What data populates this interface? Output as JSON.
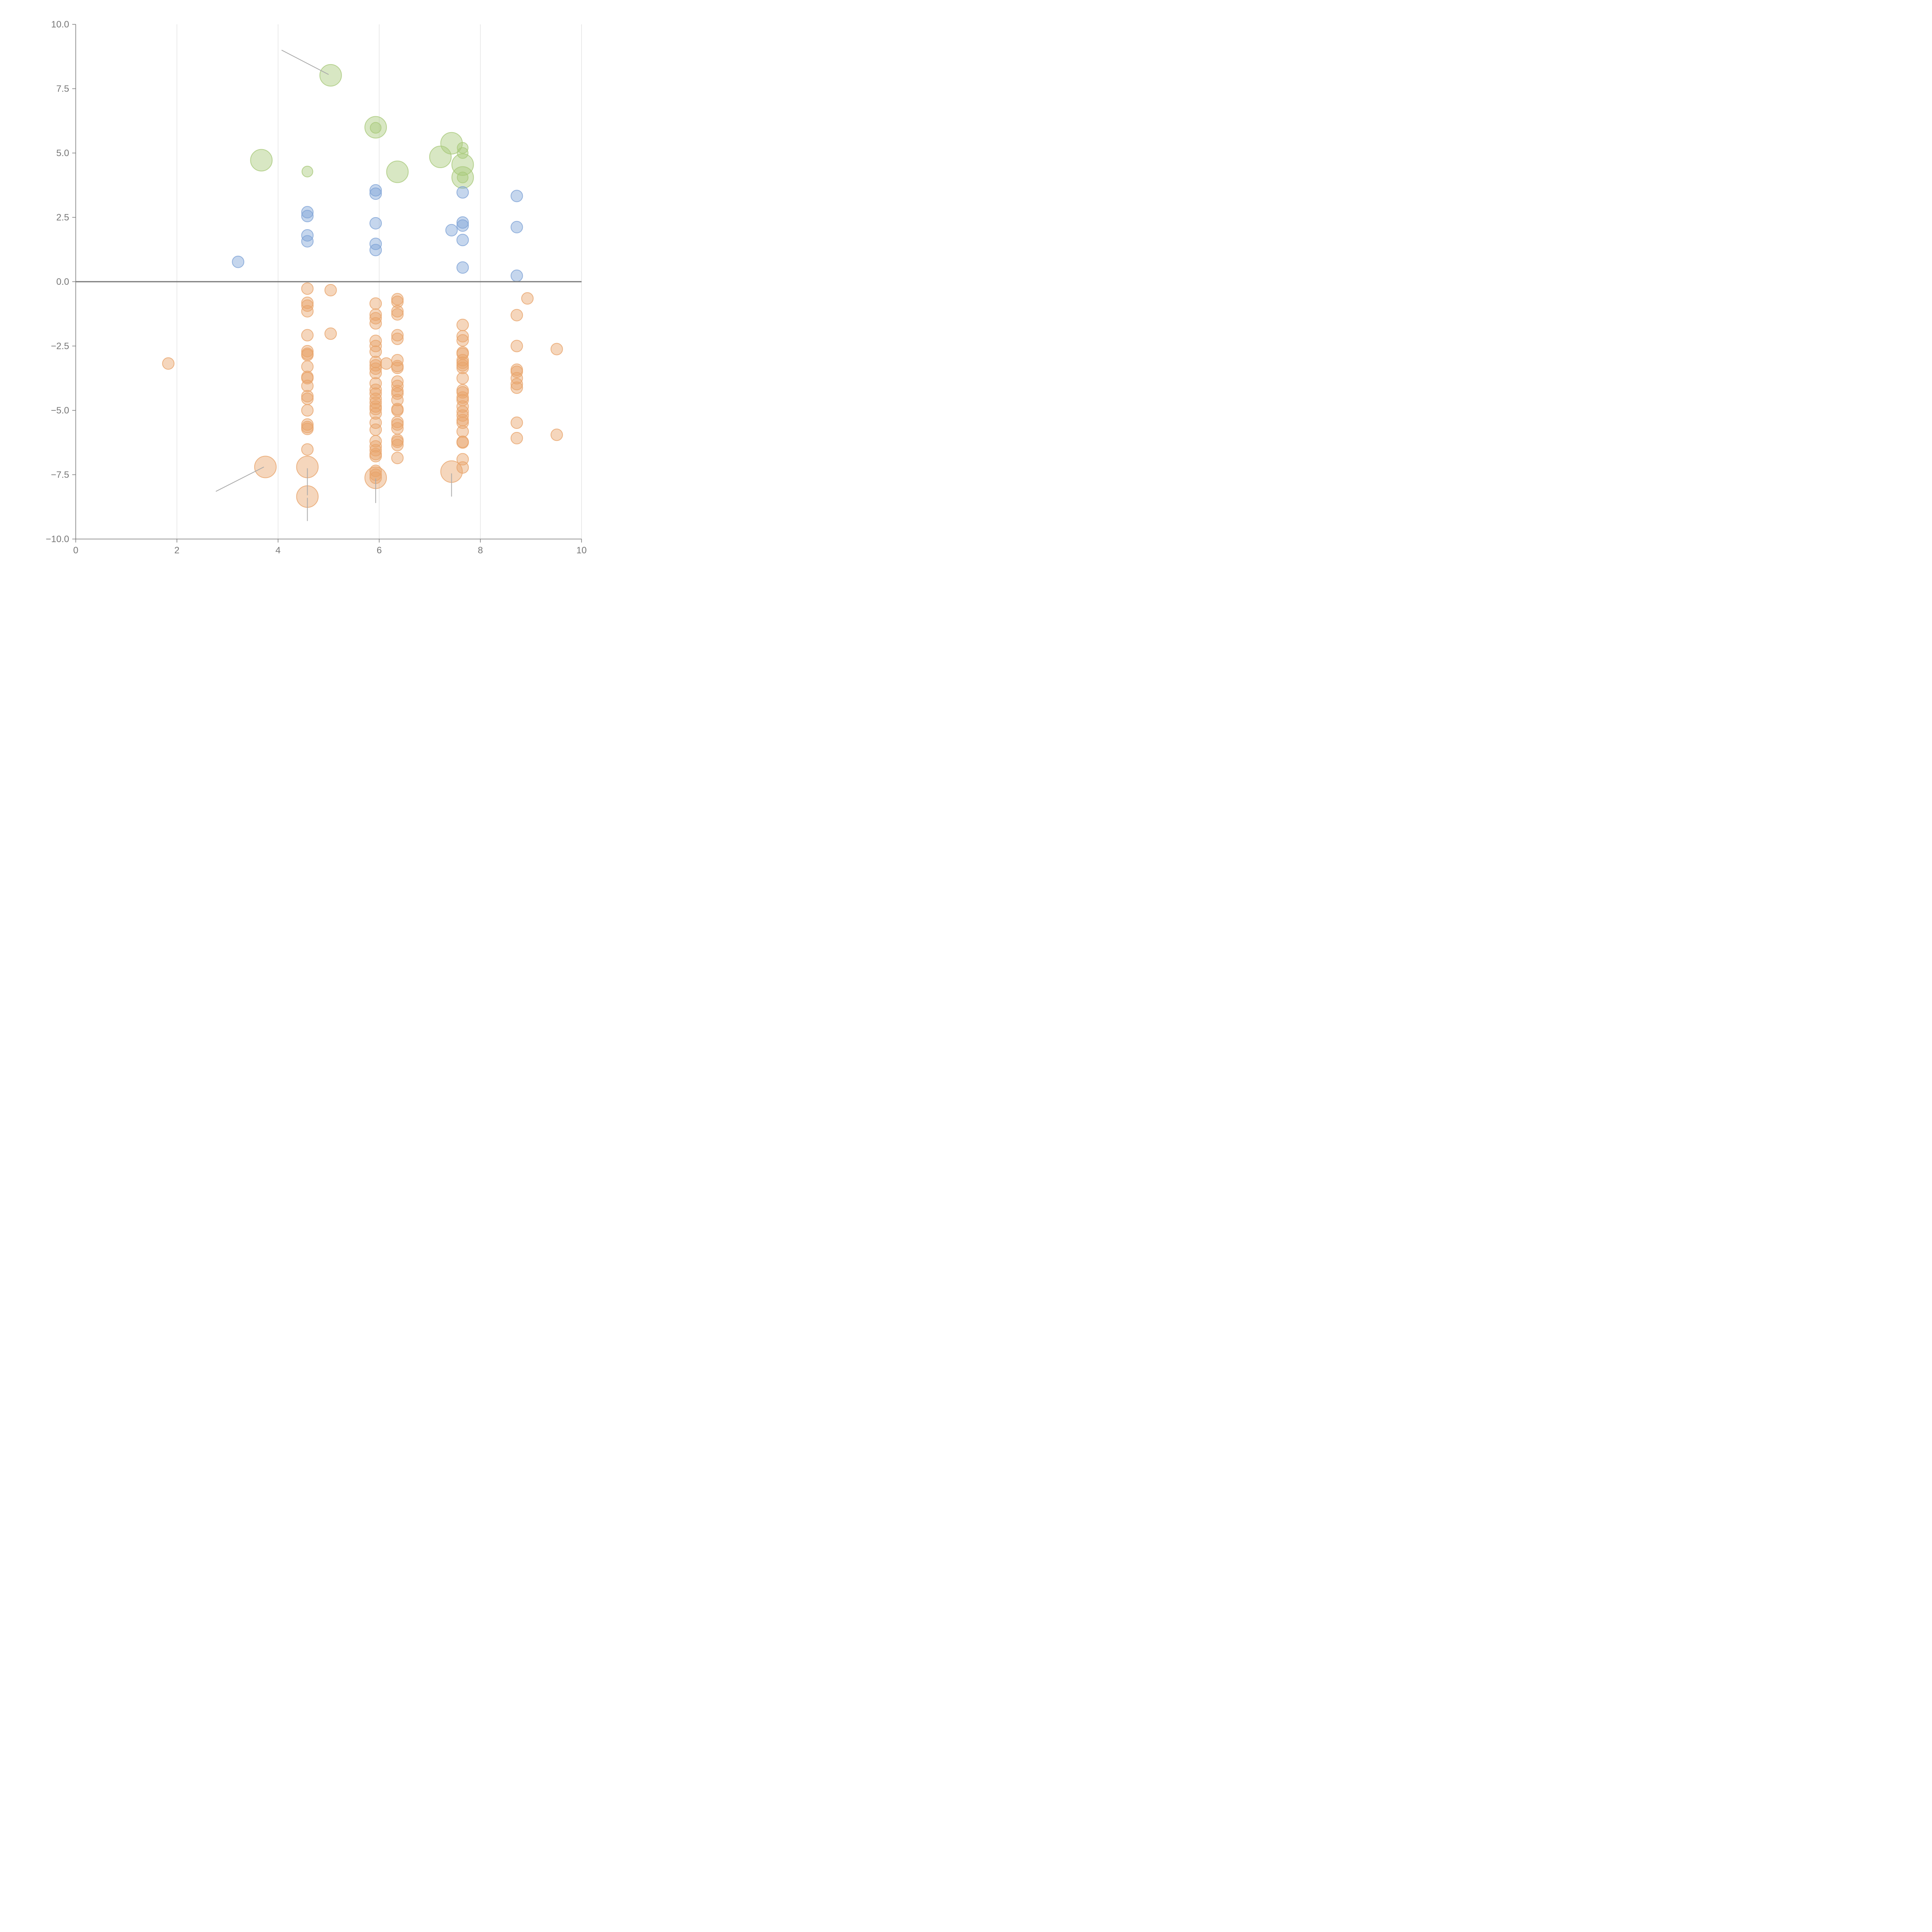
{
  "chart_data": {
    "type": "scatter",
    "title": "",
    "xlabel": "",
    "ylabel": "",
    "xlim": [
      0,
      10
    ],
    "ylim": [
      -10,
      10
    ],
    "x_ticks": [
      "0",
      "2",
      "4",
      "6",
      "8",
      "10"
    ],
    "y_ticks": [
      "10.0",
      "7.5",
      "5.0",
      "2.5",
      "0.0",
      "−2.5",
      "−5.0",
      "−7.5",
      "−10.0"
    ],
    "grid": "vertical",
    "zero_line": true,
    "legend": "none",
    "series": [
      {
        "color": "#a9c97b",
        "radius": 14,
        "points": [
          [
            4.58,
            4.28
          ],
          [
            5.93,
            5.98
          ],
          [
            7.65,
            5.2
          ],
          [
            7.65,
            5.0
          ],
          [
            7.65,
            4.05
          ]
        ]
      },
      {
        "color": "#a9c97b",
        "radius": 28,
        "points": [
          [
            5.04,
            8.02
          ],
          [
            5.93,
            6.0
          ],
          [
            3.67,
            4.72
          ],
          [
            7.43,
            5.38
          ],
          [
            7.21,
            4.85
          ],
          [
            6.36,
            4.27
          ],
          [
            7.65,
            4.55
          ],
          [
            7.65,
            4.05
          ]
        ]
      },
      {
        "color": "#7ea3d6",
        "radius": 15,
        "points": [
          [
            3.21,
            0.77
          ],
          [
            4.58,
            2.7
          ],
          [
            4.58,
            2.55
          ],
          [
            4.58,
            1.8
          ],
          [
            4.58,
            1.57
          ],
          [
            5.93,
            3.55
          ],
          [
            5.93,
            3.42
          ],
          [
            5.93,
            2.27
          ],
          [
            5.93,
            1.47
          ],
          [
            5.93,
            1.23
          ],
          [
            7.43,
            2.0
          ],
          [
            7.65,
            3.47
          ],
          [
            7.65,
            2.3
          ],
          [
            7.65,
            2.18
          ],
          [
            7.65,
            1.62
          ],
          [
            7.65,
            0.55
          ],
          [
            8.72,
            3.33
          ],
          [
            8.72,
            2.12
          ],
          [
            8.72,
            0.23
          ]
        ]
      },
      {
        "color": "#e9a46a",
        "radius": 15,
        "points": [
          [
            1.83,
            -3.18
          ],
          [
            5.04,
            -0.33
          ],
          [
            5.04,
            -2.02
          ],
          [
            6.14,
            -3.18
          ],
          [
            8.93,
            -0.65
          ],
          [
            9.51,
            -2.62
          ],
          [
            9.51,
            -5.95
          ],
          [
            4.58,
            -0.27
          ],
          [
            4.58,
            -0.82
          ],
          [
            4.58,
            -0.93
          ],
          [
            4.58,
            -1.15
          ],
          [
            4.58,
            -2.08
          ],
          [
            4.58,
            -2.7
          ],
          [
            4.58,
            -2.8
          ],
          [
            4.58,
            -2.85
          ],
          [
            4.58,
            -3.3
          ],
          [
            4.58,
            -3.7
          ],
          [
            4.58,
            -3.75
          ],
          [
            4.58,
            -4.05
          ],
          [
            4.58,
            -4.45
          ],
          [
            4.58,
            -4.55
          ],
          [
            4.58,
            -5.0
          ],
          [
            4.58,
            -5.55
          ],
          [
            4.58,
            -5.65
          ],
          [
            4.58,
            -5.72
          ],
          [
            4.58,
            -6.52
          ],
          [
            5.93,
            -0.85
          ],
          [
            5.93,
            -1.28
          ],
          [
            5.93,
            -1.42
          ],
          [
            5.93,
            -1.62
          ],
          [
            5.93,
            -2.3
          ],
          [
            5.93,
            -2.5
          ],
          [
            5.93,
            -2.72
          ],
          [
            5.93,
            -3.12
          ],
          [
            5.93,
            -3.25
          ],
          [
            5.93,
            -3.38
          ],
          [
            5.93,
            -3.55
          ],
          [
            5.93,
            -3.95
          ],
          [
            5.93,
            -4.2
          ],
          [
            5.93,
            -4.35
          ],
          [
            5.93,
            -4.55
          ],
          [
            5.93,
            -4.7
          ],
          [
            5.93,
            -4.85
          ],
          [
            5.93,
            -4.95
          ],
          [
            5.93,
            -5.12
          ],
          [
            5.93,
            -5.48
          ],
          [
            5.93,
            -5.75
          ],
          [
            5.93,
            -6.2
          ],
          [
            5.93,
            -6.4
          ],
          [
            5.93,
            -6.55
          ],
          [
            5.93,
            -6.7
          ],
          [
            5.93,
            -6.78
          ],
          [
            5.93,
            -7.35
          ],
          [
            5.93,
            -7.5
          ],
          [
            5.93,
            -7.62
          ],
          [
            6.36,
            -0.68
          ],
          [
            6.36,
            -0.78
          ],
          [
            6.36,
            -1.15
          ],
          [
            6.36,
            -1.27
          ],
          [
            6.36,
            -2.08
          ],
          [
            6.36,
            -2.22
          ],
          [
            6.36,
            -3.05
          ],
          [
            6.36,
            -3.28
          ],
          [
            6.36,
            -3.35
          ],
          [
            6.36,
            -3.88
          ],
          [
            6.36,
            -4.05
          ],
          [
            6.36,
            -4.25
          ],
          [
            6.36,
            -4.35
          ],
          [
            6.36,
            -4.6
          ],
          [
            6.36,
            -4.95
          ],
          [
            6.36,
            -5.0
          ],
          [
            6.36,
            -5.45
          ],
          [
            6.36,
            -5.55
          ],
          [
            6.36,
            -5.7
          ],
          [
            6.36,
            -6.15
          ],
          [
            6.36,
            -6.22
          ],
          [
            6.36,
            -6.35
          ],
          [
            6.36,
            -6.85
          ],
          [
            7.65,
            -1.68
          ],
          [
            7.65,
            -2.12
          ],
          [
            7.65,
            -2.28
          ],
          [
            7.65,
            -2.75
          ],
          [
            7.65,
            -2.8
          ],
          [
            7.65,
            -3.05
          ],
          [
            7.65,
            -3.15
          ],
          [
            7.65,
            -3.25
          ],
          [
            7.65,
            -3.35
          ],
          [
            7.65,
            -3.75
          ],
          [
            7.65,
            -4.22
          ],
          [
            7.65,
            -4.3
          ],
          [
            7.65,
            -4.5
          ],
          [
            7.65,
            -4.6
          ],
          [
            7.65,
            -4.85
          ],
          [
            7.65,
            -5.05
          ],
          [
            7.65,
            -5.2
          ],
          [
            7.65,
            -5.38
          ],
          [
            7.65,
            -5.48
          ],
          [
            7.65,
            -5.82
          ],
          [
            7.65,
            -6.22
          ],
          [
            7.65,
            -6.25
          ],
          [
            7.65,
            -6.9
          ],
          [
            7.65,
            -7.22
          ],
          [
            8.72,
            -1.3
          ],
          [
            8.72,
            -2.5
          ],
          [
            8.72,
            -3.42
          ],
          [
            8.72,
            -3.5
          ],
          [
            8.72,
            -3.75
          ],
          [
            8.72,
            -3.98
          ],
          [
            8.72,
            -4.12
          ],
          [
            8.72,
            -5.48
          ],
          [
            8.72,
            -6.08
          ]
        ]
      },
      {
        "color": "#e9a46a",
        "radius": 28,
        "points": [
          [
            3.75,
            -7.2
          ],
          [
            4.58,
            -7.2
          ],
          [
            4.58,
            -8.35
          ],
          [
            5.93,
            -7.62
          ],
          [
            7.43,
            -7.38
          ]
        ]
      }
    ],
    "annotation_leaders": [
      [
        [
          4.07,
          9.0
        ],
        [
          5.0,
          8.05
        ]
      ],
      [
        [
          2.77,
          -8.15
        ],
        [
          3.72,
          -7.2
        ]
      ],
      [
        [
          4.58,
          -7.25
        ],
        [
          4.58,
          -8.3
        ]
      ],
      [
        [
          4.58,
          -8.4
        ],
        [
          4.58,
          -9.3
        ]
      ],
      [
        [
          5.93,
          -7.65
        ],
        [
          5.93,
          -8.6
        ]
      ],
      [
        [
          7.43,
          -7.45
        ],
        [
          7.43,
          -8.35
        ]
      ]
    ]
  }
}
